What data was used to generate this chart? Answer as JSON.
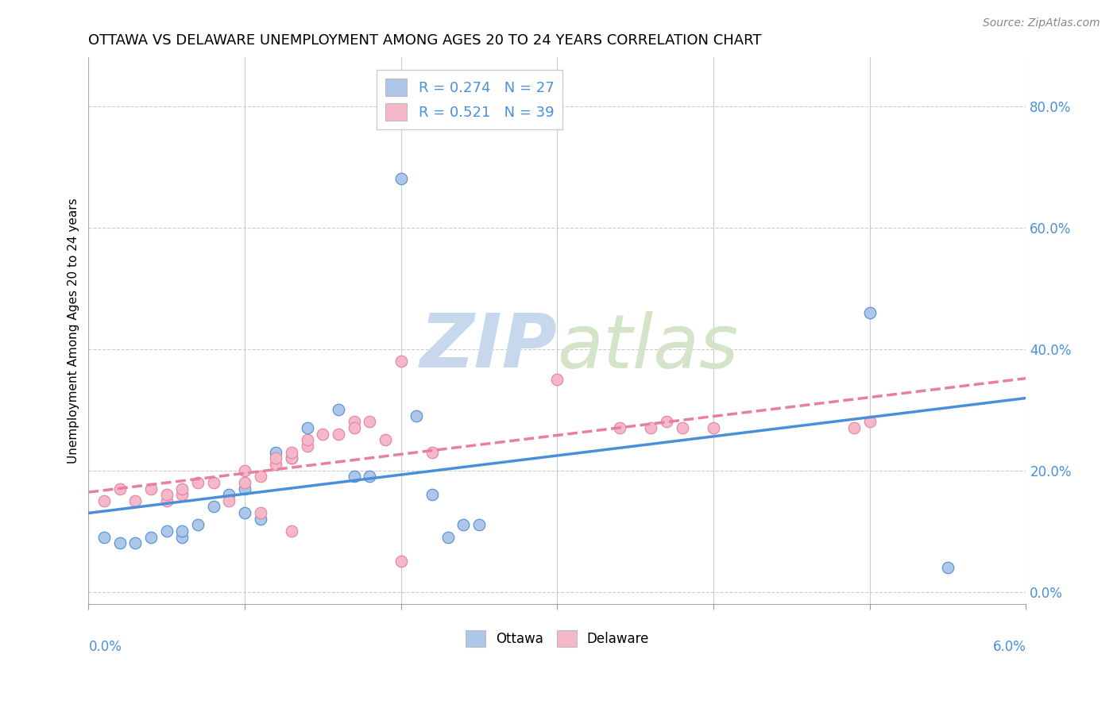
{
  "title": "OTTAWA VS DELAWARE UNEMPLOYMENT AMONG AGES 20 TO 24 YEARS CORRELATION CHART",
  "source": "Source: ZipAtlas.com",
  "ylabel": "Unemployment Among Ages 20 to 24 years",
  "yticks": [
    "0.0%",
    "20.0%",
    "40.0%",
    "60.0%",
    "80.0%"
  ],
  "ytick_vals": [
    0.0,
    0.2,
    0.4,
    0.6,
    0.8
  ],
  "xmin": 0.0,
  "xmax": 0.06,
  "ymin": -0.02,
  "ymax": 0.88,
  "ottawa_color": "#aec6e8",
  "delaware_color": "#f4b8c8",
  "ottawa_line_color": "#4a90d9",
  "delaware_line_color": "#e87fa0",
  "legend_text_color": "#4a90d9",
  "watermark_zip_color": "#c8d8ec",
  "watermark_atlas_color": "#c8d8ec",
  "ottawa_R": 0.274,
  "ottawa_N": 27,
  "delaware_R": 0.521,
  "delaware_N": 39,
  "ottawa_points": [
    [
      0.001,
      0.09
    ],
    [
      0.002,
      0.08
    ],
    [
      0.003,
      0.08
    ],
    [
      0.004,
      0.09
    ],
    [
      0.005,
      0.1
    ],
    [
      0.006,
      0.09
    ],
    [
      0.006,
      0.1
    ],
    [
      0.007,
      0.11
    ],
    [
      0.008,
      0.14
    ],
    [
      0.009,
      0.16
    ],
    [
      0.01,
      0.17
    ],
    [
      0.01,
      0.13
    ],
    [
      0.011,
      0.12
    ],
    [
      0.012,
      0.23
    ],
    [
      0.013,
      0.22
    ],
    [
      0.014,
      0.27
    ],
    [
      0.016,
      0.3
    ],
    [
      0.017,
      0.19
    ],
    [
      0.018,
      0.19
    ],
    [
      0.02,
      0.68
    ],
    [
      0.021,
      0.29
    ],
    [
      0.022,
      0.16
    ],
    [
      0.023,
      0.09
    ],
    [
      0.024,
      0.11
    ],
    [
      0.025,
      0.11
    ],
    [
      0.05,
      0.46
    ],
    [
      0.055,
      0.04
    ]
  ],
  "delaware_points": [
    [
      0.001,
      0.15
    ],
    [
      0.002,
      0.17
    ],
    [
      0.003,
      0.15
    ],
    [
      0.004,
      0.17
    ],
    [
      0.005,
      0.15
    ],
    [
      0.005,
      0.16
    ],
    [
      0.006,
      0.16
    ],
    [
      0.006,
      0.17
    ],
    [
      0.007,
      0.18
    ],
    [
      0.008,
      0.18
    ],
    [
      0.009,
      0.15
    ],
    [
      0.01,
      0.18
    ],
    [
      0.01,
      0.2
    ],
    [
      0.011,
      0.19
    ],
    [
      0.012,
      0.21
    ],
    [
      0.012,
      0.22
    ],
    [
      0.013,
      0.22
    ],
    [
      0.013,
      0.23
    ],
    [
      0.014,
      0.24
    ],
    [
      0.014,
      0.25
    ],
    [
      0.015,
      0.26
    ],
    [
      0.016,
      0.26
    ],
    [
      0.017,
      0.28
    ],
    [
      0.017,
      0.27
    ],
    [
      0.018,
      0.28
    ],
    [
      0.019,
      0.25
    ],
    [
      0.02,
      0.38
    ],
    [
      0.022,
      0.23
    ],
    [
      0.03,
      0.35
    ],
    [
      0.034,
      0.27
    ],
    [
      0.036,
      0.27
    ],
    [
      0.037,
      0.28
    ],
    [
      0.038,
      0.27
    ],
    [
      0.04,
      0.27
    ],
    [
      0.049,
      0.27
    ],
    [
      0.05,
      0.28
    ],
    [
      0.02,
      0.05
    ],
    [
      0.013,
      0.1
    ],
    [
      0.011,
      0.13
    ]
  ],
  "background_color": "#ffffff",
  "grid_color": "#cccccc",
  "x_tick_positions": [
    0.0,
    0.01,
    0.02,
    0.03,
    0.04,
    0.05,
    0.06
  ]
}
